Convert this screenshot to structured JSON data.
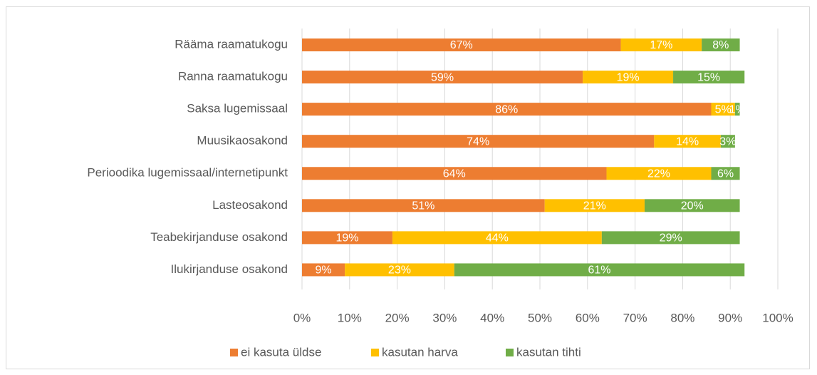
{
  "chart_data": {
    "type": "stacked-barh",
    "categories": [
      "Rääma raamatukogu",
      "Ranna raamatukogu",
      "Saksa lugemissaal",
      "Muusikaosakond",
      "Perioodika lugemissaal/internetipunkt",
      "Lasteosakond",
      "Teabekirjanduse osakond",
      "Ilukirjanduse osakond"
    ],
    "series": [
      {
        "name": "ei kasuta üldse",
        "color": "#ED7D31",
        "values": [
          67,
          59,
          86,
          74,
          64,
          51,
          19,
          9
        ],
        "value_labels": [
          "67%",
          "59%",
          "86%",
          "74%",
          "64%",
          "51%",
          "19%",
          "9%"
        ]
      },
      {
        "name": "kasutan harva",
        "color": "#FFC000",
        "values": [
          17,
          19,
          5,
          14,
          22,
          21,
          44,
          23
        ],
        "value_labels": [
          "17%",
          "19%",
          "5%",
          "14%",
          "22%",
          "21%",
          "44%",
          "23%"
        ]
      },
      {
        "name": "kasutan tihti",
        "color": "#70AD47",
        "values": [
          8,
          15,
          1,
          3,
          6,
          20,
          29,
          61
        ],
        "value_labels": [
          "8%",
          "15%",
          "1%",
          "3%",
          "6%",
          "20%",
          "29%",
          "61%"
        ]
      }
    ],
    "xlim": [
      0,
      100
    ],
    "xticks": [
      {
        "value": 0,
        "label": "0%"
      },
      {
        "value": 10,
        "label": "10%"
      },
      {
        "value": 20,
        "label": "20%"
      },
      {
        "value": 30,
        "label": "30%"
      },
      {
        "value": 40,
        "label": "40%"
      },
      {
        "value": 50,
        "label": "50%"
      },
      {
        "value": 60,
        "label": "60%"
      },
      {
        "value": 70,
        "label": "70%"
      },
      {
        "value": 80,
        "label": "80%"
      },
      {
        "value": 90,
        "label": "90%"
      },
      {
        "value": 100,
        "label": "100%"
      }
    ],
    "grid": true,
    "legend": "bottom"
  }
}
